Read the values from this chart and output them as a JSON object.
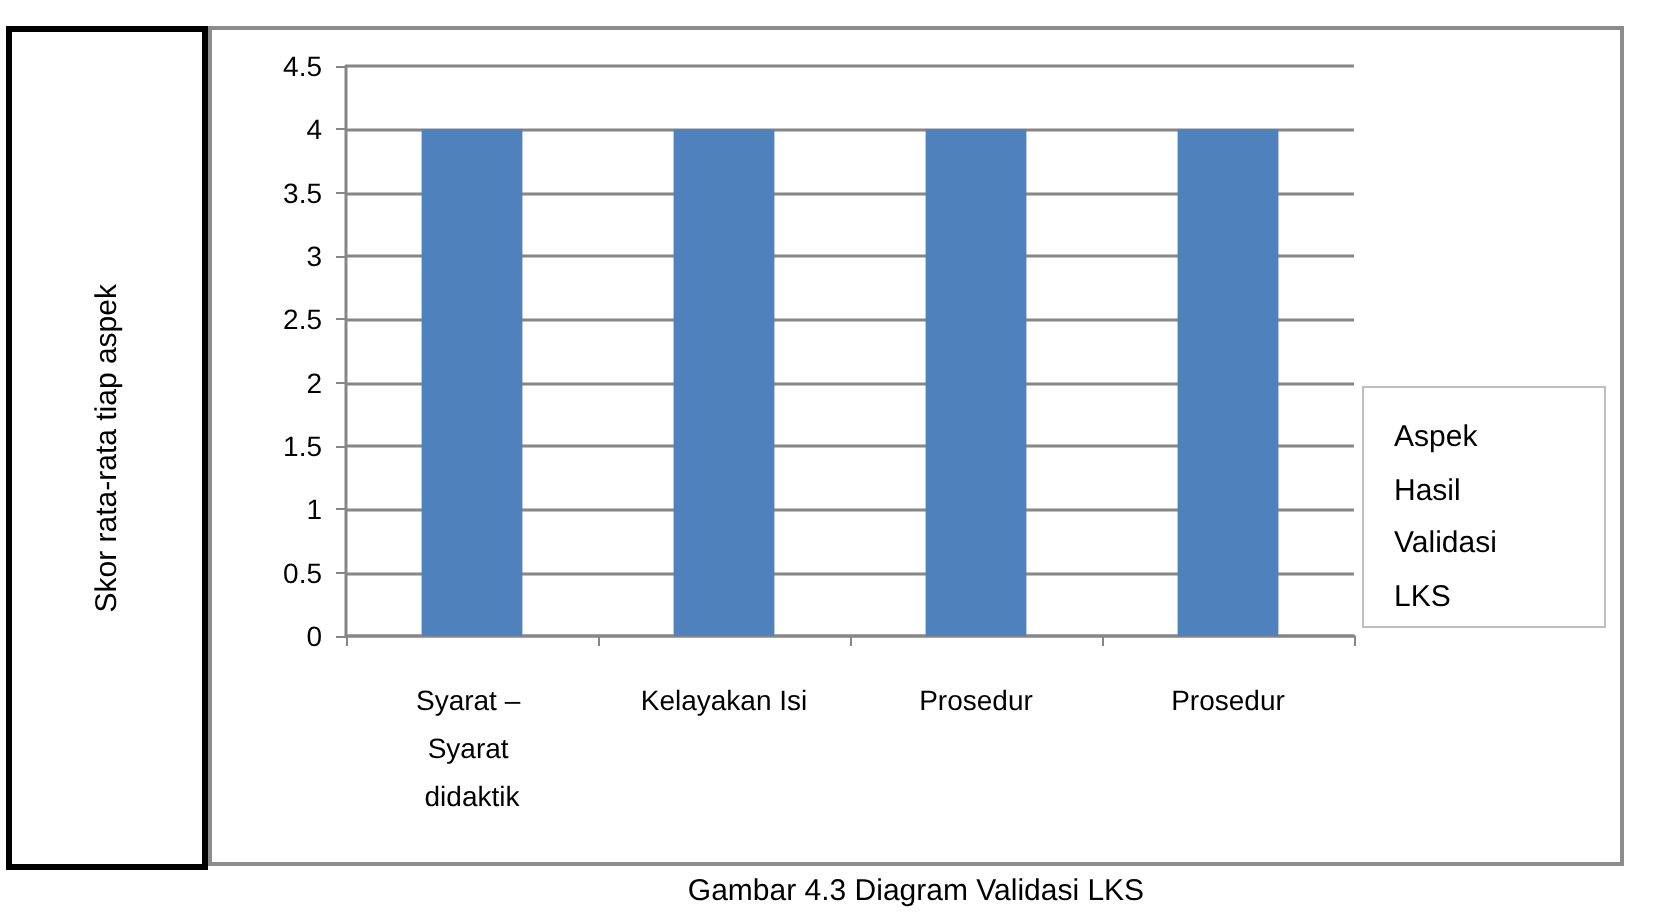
{
  "chart_data": {
    "type": "bar",
    "xlabel": "Aspek Hasil Validasi LKS",
    "categories": [
      "Syarat – Syarat didaktik",
      "Kelayakan Isi",
      "Prosedur",
      "Prosedur"
    ],
    "values": [
      4,
      4,
      4,
      4
    ],
    "color": "#4f81bd",
    "ylim": [
      0,
      4.5
    ],
    "yticks": [
      0,
      0.5,
      1,
      1.5,
      2,
      2.5,
      3,
      3.5,
      4,
      4.5
    ],
    "grid": "y",
    "annotations": [
      "Skor rata-rata tiap aspek",
      "Gambar 4.3 Diagram Validasi LKS"
    ]
  }
}
